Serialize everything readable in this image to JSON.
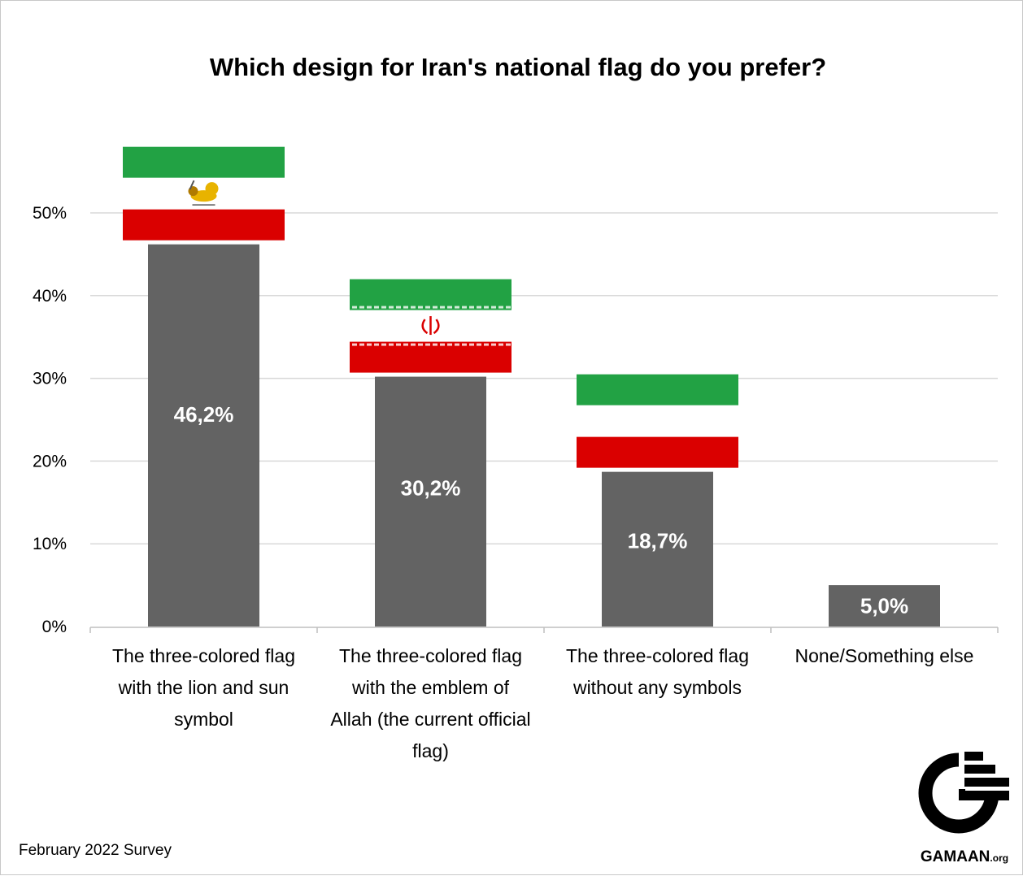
{
  "chart_data": {
    "type": "bar",
    "title": "Which design for Iran's national flag do you prefer?",
    "xlabel": "",
    "ylabel": "",
    "ylim": [
      0,
      50
    ],
    "y_ticks": [
      0,
      10,
      20,
      30,
      40,
      50
    ],
    "y_tick_labels": [
      "0%",
      "10%",
      "20%",
      "30%",
      "40%",
      "50%"
    ],
    "grid": true,
    "categories": [
      "The three-colored flag with the lion and sun symbol",
      "The three-colored flag with the emblem of Allah (the current official flag)",
      "The three-colored flag without any symbols",
      "None/Something else"
    ],
    "category_label_lines": [
      [
        "The three-colored flag",
        "with the lion and sun",
        "symbol"
      ],
      [
        "The three-colored flag",
        "with the emblem of",
        "Allah (the current official",
        "flag)"
      ],
      [
        "The three-colored flag",
        "without any symbols"
      ],
      [
        "None/Something else"
      ]
    ],
    "values": [
      46.2,
      30.2,
      18.7,
      5.0
    ],
    "value_labels": [
      "46,2%",
      "30,2%",
      "18,7%",
      "5,0%"
    ],
    "flag_icons": [
      "lion-and-sun-flag",
      "emblem-of-allah-flag",
      "plain-tricolor-flag",
      "none"
    ]
  },
  "footer": {
    "survey_note": "February 2022 Survey",
    "brand": "GAMAAN",
    "brand_suffix": ".org"
  },
  "colors": {
    "bar": "#636363",
    "grid": "#d9d9d9",
    "flag_green": "#22a244",
    "flag_white": "#ffffff",
    "flag_red": "#da0000",
    "emblem_gold": "#e8b300"
  }
}
